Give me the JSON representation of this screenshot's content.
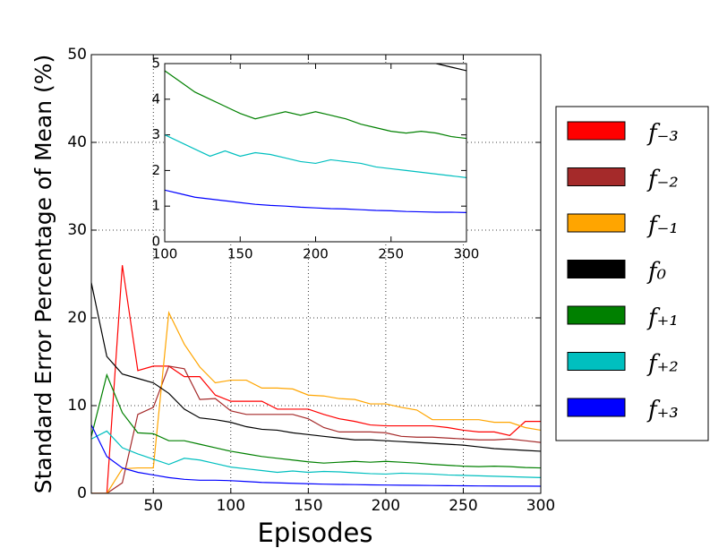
{
  "chart_data": {
    "type": "line",
    "xlabel": "Episodes",
    "ylabel": "Standard Error Percentage of Mean (%)",
    "x": [
      10,
      20,
      30,
      40,
      50,
      60,
      70,
      80,
      90,
      100,
      110,
      120,
      130,
      140,
      150,
      160,
      170,
      180,
      190,
      200,
      210,
      220,
      230,
      240,
      250,
      260,
      270,
      280,
      290,
      300
    ],
    "xlim": [
      10,
      300
    ],
    "xticks": [
      50,
      100,
      150,
      200,
      250,
      300
    ],
    "ylim": [
      0,
      50
    ],
    "yticks": [
      0,
      10,
      20,
      30,
      40,
      50
    ],
    "grid": true,
    "legend": "outside right",
    "series": [
      {
        "name": "f₋₃",
        "color": "#ff0000",
        "values": [
          0,
          0,
          26,
          14,
          14.5,
          14.5,
          13.3,
          13.3,
          11.2,
          10.5,
          10.5,
          10.5,
          9.6,
          9.6,
          9.6,
          9,
          8.5,
          8.2,
          7.8,
          7.7,
          7.7,
          7.7,
          7.7,
          7.5,
          7.2,
          7,
          7,
          6.6,
          8.2,
          8.2
        ]
      },
      {
        "name": "f₋₂",
        "color": "#a52a2a",
        "values": [
          0,
          0,
          1.2,
          9,
          9.8,
          14.5,
          14.2,
          10.7,
          10.8,
          9.4,
          9,
          9,
          9,
          9,
          8.5,
          7.5,
          7,
          7,
          7,
          6.9,
          6.5,
          6.4,
          6.4,
          6.3,
          6.2,
          6.1,
          6.1,
          6.2,
          6,
          5.8
        ]
      },
      {
        "name": "f₋₁",
        "color": "#ffa500",
        "values": [
          0,
          0,
          2.8,
          2.9,
          2.9,
          20.6,
          17,
          14.4,
          12.6,
          12.9,
          12.9,
          12,
          12,
          11.9,
          11.2,
          11.1,
          10.8,
          10.7,
          10.2,
          10.2,
          9.8,
          9.5,
          8.4,
          8.4,
          8.4,
          8.4,
          8.1,
          8.1,
          7.5,
          7.2
        ]
      },
      {
        "name": "f₀",
        "color": "#000000",
        "values": [
          24,
          15.6,
          13.6,
          13.1,
          12.6,
          11.4,
          9.6,
          8.6,
          8.4,
          8.1,
          7.6,
          7.3,
          7.2,
          6.9,
          6.7,
          6.5,
          6.3,
          6.1,
          6.1,
          6,
          5.9,
          5.8,
          5.7,
          5.6,
          5.5,
          5.3,
          5.1,
          5,
          4.9,
          4.8
        ]
      },
      {
        "name": "f₊₁",
        "color": "#008000",
        "values": [
          6.5,
          13.5,
          9.2,
          6.9,
          6.8,
          6,
          6,
          5.6,
          5.2,
          4.8,
          4.5,
          4.2,
          4,
          3.8,
          3.6,
          3.45,
          3.55,
          3.65,
          3.55,
          3.65,
          3.55,
          3.45,
          3.3,
          3.2,
          3.1,
          3.05,
          3.1,
          3.05,
          2.95,
          2.9
        ]
      },
      {
        "name": "f₊₂",
        "color": "#00bfbf",
        "values": [
          6.2,
          7.1,
          5.2,
          4.5,
          3.9,
          3.3,
          4,
          3.8,
          3.4,
          3,
          2.8,
          2.6,
          2.4,
          2.55,
          2.4,
          2.5,
          2.45,
          2.35,
          2.25,
          2.2,
          2.3,
          2.25,
          2.2,
          2.1,
          2.05,
          2,
          1.95,
          1.9,
          1.85,
          1.8
        ]
      },
      {
        "name": "f₊₃",
        "color": "#0000ff",
        "values": [
          7.8,
          4.2,
          2.9,
          2.4,
          2.1,
          1.8,
          1.6,
          1.5,
          1.5,
          1.45,
          1.35,
          1.25,
          1.2,
          1.15,
          1.1,
          1.05,
          1.02,
          1,
          0.97,
          0.95,
          0.93,
          0.92,
          0.9,
          0.88,
          0.87,
          0.85,
          0.84,
          0.83,
          0.83,
          0.82
        ]
      }
    ],
    "inset": {
      "xlim": [
        100,
        300
      ],
      "xticks": [
        100,
        150,
        200,
        250,
        300
      ],
      "ylim": [
        0,
        5
      ],
      "yticks": [
        0,
        1,
        2,
        3,
        4,
        5
      ]
    }
  }
}
